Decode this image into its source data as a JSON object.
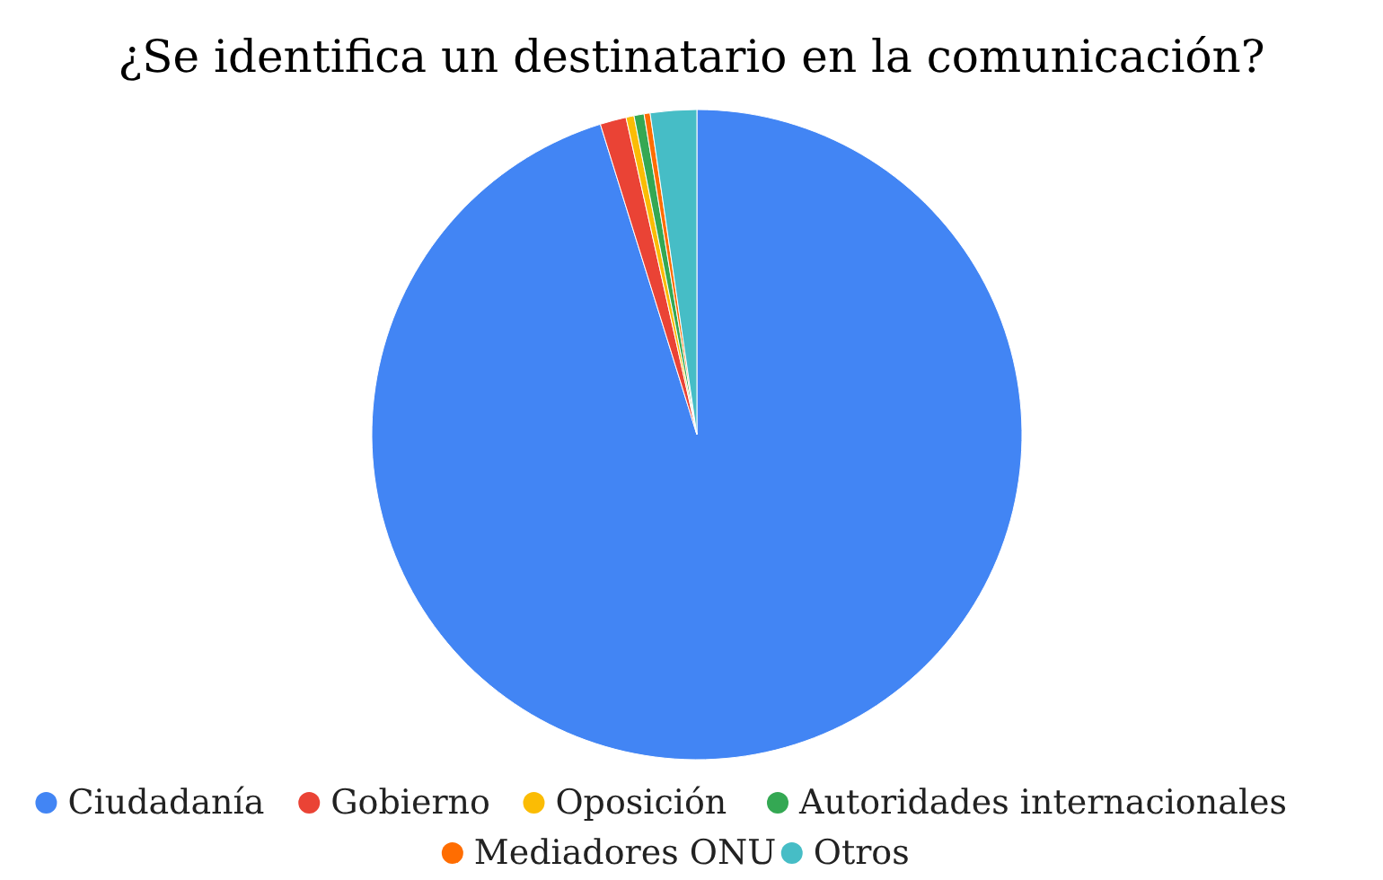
{
  "chart_data": {
    "type": "pie",
    "title": "¿Se identifica un destinatario en la comunicación?",
    "categories": [
      "Ciudadanía",
      "Gobierno",
      "Oposición",
      "Autoridades internacionales",
      "Mediadores ONU",
      "Otros"
    ],
    "values": [
      95.2,
      1.3,
      0.4,
      0.5,
      0.3,
      2.3
    ],
    "colors": [
      "#4285f4",
      "#ea4335",
      "#fbbc04",
      "#34a853",
      "#ff6d01",
      "#46bdc6"
    ],
    "legend": "bottom"
  }
}
